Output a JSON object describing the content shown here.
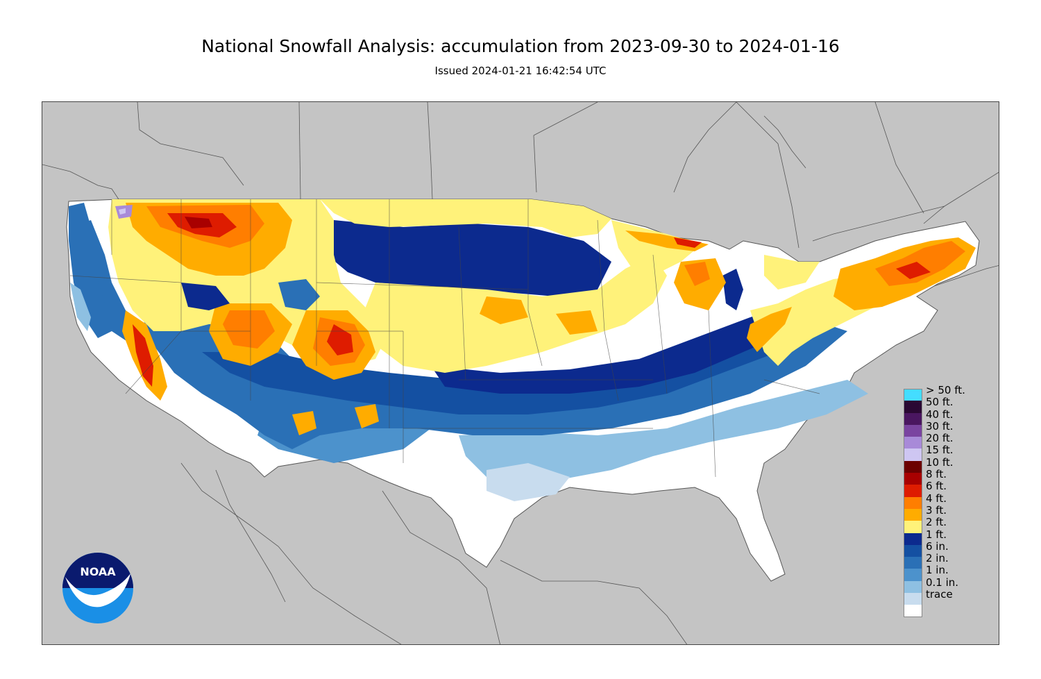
{
  "header": {
    "title": "National Snowfall Analysis: accumulation from 2023-09-30 to 2024-01-16",
    "subtitle": "Issued 2024-01-21 16:42:54 UTC"
  },
  "colors": {
    "land": "#c4c4c4",
    "us_base": "#ffffff"
  },
  "legend": {
    "items": [
      {
        "label": "> 50 ft.",
        "color": "#44ddff"
      },
      {
        "label": "50 ft.",
        "color": "#2a0833"
      },
      {
        "label": "40 ft.",
        "color": "#4a1660"
      },
      {
        "label": "30 ft.",
        "color": "#7a44a0"
      },
      {
        "label": "20 ft.",
        "color": "#a88ad8"
      },
      {
        "label": "15 ft.",
        "color": "#cec6f2"
      },
      {
        "label": "10 ft.",
        "color": "#6c0000"
      },
      {
        "label": "8 ft.",
        "color": "#a80000"
      },
      {
        "label": "6 ft.",
        "color": "#de1c00"
      },
      {
        "label": "4 ft.",
        "color": "#ff7e00"
      },
      {
        "label": "3 ft.",
        "color": "#ffac00"
      },
      {
        "label": "2 ft.",
        "color": "#fff27a"
      },
      {
        "label": "1 ft.",
        "color": "#0c2a8e"
      },
      {
        "label": "6 in.",
        "color": "#1450a2"
      },
      {
        "label": "2 in.",
        "color": "#2a70b6"
      },
      {
        "label": "1 in.",
        "color": "#4c92cc"
      },
      {
        "label": "0.1 in.",
        "color": "#8ec0e2"
      },
      {
        "label": "trace",
        "color": "#c8dcee"
      },
      {
        "label": "",
        "color": "#ffffff"
      }
    ]
  },
  "logo": {
    "text": "NOAA",
    "colors": {
      "top": "#0a1a6e",
      "bottom": "#1a8fe6"
    }
  }
}
